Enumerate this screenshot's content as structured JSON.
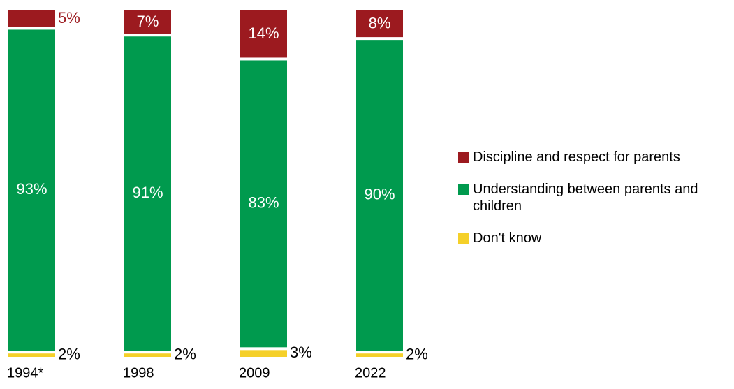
{
  "chart_data": {
    "type": "bar",
    "stacked": true,
    "orientation": "vertical",
    "categories": [
      "1994*",
      "1998",
      "2009",
      "2022"
    ],
    "series": [
      {
        "name": "Discipline and respect for parents",
        "color": "#9c1a1f",
        "values": [
          5,
          7,
          14,
          8
        ],
        "labels": [
          "5%",
          "7%",
          "14%",
          "8%"
        ]
      },
      {
        "name": "Understanding between parents and children",
        "color": "#009a4e",
        "values": [
          93,
          91,
          83,
          90
        ],
        "labels": [
          "93%",
          "91%",
          "83%",
          "90%"
        ]
      },
      {
        "name": "Don't know",
        "color": "#f5d029",
        "values": [
          2,
          2,
          3,
          2
        ],
        "labels": [
          "2%",
          "2%",
          "3%",
          "2%"
        ]
      }
    ],
    "units": "%",
    "ylim": [
      0,
      100
    ],
    "grid": false,
    "legend_position": "right",
    "title": "",
    "xlabel": "",
    "ylabel": ""
  },
  "legend": {
    "items": [
      {
        "label": "Discipline and respect for parents",
        "color": "#9c1a1f"
      },
      {
        "label": "Understanding between parents and children",
        "color": "#009a4e"
      },
      {
        "label": "Don't know",
        "color": "#f5d029"
      }
    ]
  }
}
